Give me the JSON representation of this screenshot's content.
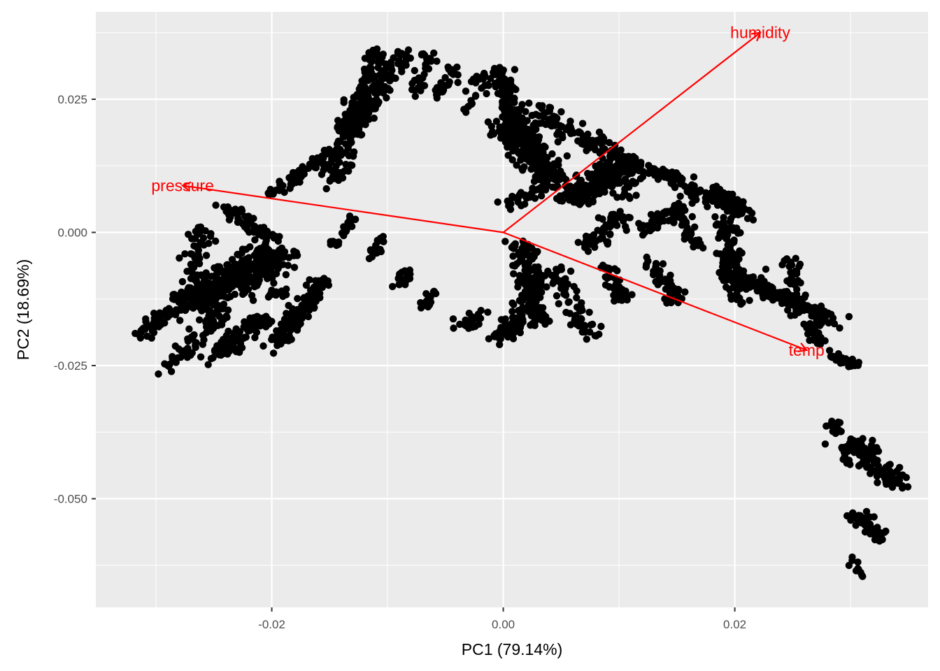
{
  "chart_data": {
    "type": "scatter",
    "title": "",
    "xlabel": "PC1 (79.14%)",
    "ylabel": "PC2 (18.69%)",
    "xlim": [
      -0.0352,
      0.0367
    ],
    "ylim": [
      -0.0704,
      0.0414
    ],
    "x_ticks": [
      -0.02,
      0.0,
      0.02
    ],
    "x_tick_labels": [
      "-0.02",
      "0.00",
      "0.02"
    ],
    "y_ticks": [
      -0.05,
      -0.025,
      0.0,
      0.025
    ],
    "y_tick_labels": [
      "-0.050",
      "-0.025",
      "0.000",
      "0.025"
    ],
    "grid": true,
    "background": "#ebebeb",
    "point_color": "#000000",
    "arrow_color": "#ff0000",
    "loadings": [
      {
        "label": "humidity",
        "x": 0.0222,
        "y": 0.0375
      },
      {
        "label": "pressure",
        "x": -0.0277,
        "y": 0.0088
      },
      {
        "label": "temp",
        "x": 0.0262,
        "y": -0.0221
      }
    ],
    "point_clusters": [
      {
        "x0": -0.0318,
        "y0": -0.0195,
        "x1": -0.0263,
        "y1": -0.0115,
        "n": 80,
        "spread": 0.0012
      },
      {
        "x0": -0.029,
        "y0": -0.025,
        "x1": -0.024,
        "y1": -0.015,
        "n": 70,
        "spread": 0.0012
      },
      {
        "x0": -0.027,
        "y0": -0.014,
        "x1": -0.026,
        "y1": 0.001,
        "n": 60,
        "spread": 0.001
      },
      {
        "x0": -0.0265,
        "y0": -0.013,
        "x1": -0.02,
        "y1": -0.004,
        "n": 380,
        "spread": 0.0021
      },
      {
        "x0": -0.025,
        "y0": -0.024,
        "x1": -0.021,
        "y1": -0.016,
        "n": 90,
        "spread": 0.0011
      },
      {
        "x0": -0.0245,
        "y0": 0.005,
        "x1": -0.02,
        "y1": -0.001,
        "n": 60,
        "spread": 0.001
      },
      {
        "x0": -0.0195,
        "y0": -0.021,
        "x1": -0.0155,
        "y1": -0.0085,
        "n": 130,
        "spread": 0.0009
      },
      {
        "x0": -0.0205,
        "y0": -0.012,
        "x1": -0.019,
        "y1": -0.011,
        "n": 15,
        "spread": 0.0006
      },
      {
        "x0": -0.02,
        "y0": 0.007,
        "x1": -0.015,
        "y1": 0.015,
        "n": 60,
        "spread": 0.0008
      },
      {
        "x0": -0.015,
        "y0": 0.008,
        "x1": -0.014,
        "y1": 0.02,
        "n": 30,
        "spread": 0.0008
      },
      {
        "x0": -0.0145,
        "y0": 0.01,
        "x1": -0.0125,
        "y1": 0.024,
        "n": 70,
        "spread": 0.0009
      },
      {
        "x0": -0.0145,
        "y0": -0.0025,
        "x1": -0.013,
        "y1": 0.0025,
        "n": 30,
        "spread": 0.0006
      },
      {
        "x0": -0.0115,
        "y0": -0.005,
        "x1": -0.0105,
        "y1": -0.0005,
        "n": 20,
        "spread": 0.0005
      },
      {
        "x0": -0.013,
        "y0": 0.018,
        "x1": -0.011,
        "y1": 0.034,
        "n": 130,
        "spread": 0.0009
      },
      {
        "x0": -0.0115,
        "y0": 0.023,
        "x1": -0.0085,
        "y1": 0.034,
        "n": 70,
        "spread": 0.0008
      },
      {
        "x0": -0.009,
        "y0": -0.01,
        "x1": -0.008,
        "y1": -0.007,
        "n": 25,
        "spread": 0.0006
      },
      {
        "x0": -0.007,
        "y0": -0.014,
        "x1": -0.006,
        "y1": -0.011,
        "n": 20,
        "spread": 0.0006
      },
      {
        "x0": -0.0075,
        "y0": 0.026,
        "x1": -0.0065,
        "y1": 0.034,
        "n": 30,
        "spread": 0.0007
      },
      {
        "x0": -0.0055,
        "y0": 0.025,
        "x1": -0.0045,
        "y1": 0.032,
        "n": 25,
        "spread": 0.0007
      },
      {
        "x0": -0.003,
        "y0": 0.023,
        "x1": -0.0015,
        "y1": 0.03,
        "n": 25,
        "spread": 0.0007
      },
      {
        "x0": -0.0035,
        "y0": -0.018,
        "x1": -0.0015,
        "y1": -0.014,
        "n": 25,
        "spread": 0.0007
      },
      {
        "x0": -0.0005,
        "y0": 0.031,
        "x1": 0.002,
        "y1": 0.017,
        "n": 130,
        "spread": 0.001
      },
      {
        "x0": 0.0005,
        "y0": 0.02,
        "x1": 0.004,
        "y1": 0.01,
        "n": 200,
        "spread": 0.0015
      },
      {
        "x0": 0.003,
        "y0": 0.023,
        "x1": 0.009,
        "y1": 0.015,
        "n": 100,
        "spread": 0.0015
      },
      {
        "x0": 0.0,
        "y0": 0.005,
        "x1": 0.005,
        "y1": 0.01,
        "n": 40,
        "spread": 0.001
      },
      {
        "x0": 0.0015,
        "y0": -0.002,
        "x1": 0.003,
        "y1": -0.017,
        "n": 150,
        "spread": 0.0011
      },
      {
        "x0": -0.0005,
        "y0": -0.02,
        "x1": 0.002,
        "y1": -0.015,
        "n": 60,
        "spread": 0.001
      },
      {
        "x0": 0.0045,
        "y0": -0.007,
        "x1": 0.0075,
        "y1": -0.02,
        "n": 70,
        "spread": 0.001
      },
      {
        "x0": 0.006,
        "y0": 0.006,
        "x1": 0.011,
        "y1": 0.014,
        "n": 250,
        "spread": 0.0014
      },
      {
        "x0": 0.007,
        "y0": -0.003,
        "x1": 0.01,
        "y1": 0.003,
        "n": 60,
        "spread": 0.0011
      },
      {
        "x0": 0.0085,
        "y0": -0.006,
        "x1": 0.0105,
        "y1": -0.013,
        "n": 40,
        "spread": 0.0008
      },
      {
        "x0": 0.0105,
        "y0": 0.006,
        "x1": 0.0115,
        "y1": 0.012,
        "n": 25,
        "spread": 0.0008
      },
      {
        "x0": 0.012,
        "y0": 0.0,
        "x1": 0.015,
        "y1": 0.005,
        "n": 50,
        "spread": 0.0009
      },
      {
        "x0": 0.013,
        "y0": 0.012,
        "x1": 0.018,
        "y1": 0.006,
        "n": 80,
        "spread": 0.001
      },
      {
        "x0": 0.0125,
        "y0": -0.005,
        "x1": 0.015,
        "y1": -0.013,
        "n": 50,
        "spread": 0.0009
      },
      {
        "x0": 0.0145,
        "y0": 0.005,
        "x1": 0.017,
        "y1": -0.003,
        "n": 40,
        "spread": 0.0008
      },
      {
        "x0": 0.018,
        "y0": 0.008,
        "x1": 0.021,
        "y1": 0.003,
        "n": 80,
        "spread": 0.001
      },
      {
        "x0": 0.019,
        "y0": 0.003,
        "x1": 0.0205,
        "y1": -0.013,
        "n": 120,
        "spread": 0.001
      },
      {
        "x0": 0.02,
        "y0": -0.008,
        "x1": 0.025,
        "y1": -0.013,
        "n": 120,
        "spread": 0.0011
      },
      {
        "x0": 0.0245,
        "y0": -0.004,
        "x1": 0.0255,
        "y1": -0.015,
        "n": 40,
        "spread": 0.0008
      },
      {
        "x0": 0.025,
        "y0": -0.013,
        "x1": 0.029,
        "y1": -0.017,
        "n": 70,
        "spread": 0.0009
      },
      {
        "x0": 0.0265,
        "y0": -0.017,
        "x1": 0.0275,
        "y1": -0.021,
        "n": 25,
        "spread": 0.0006
      },
      {
        "x0": 0.0285,
        "y0": -0.023,
        "x1": 0.0305,
        "y1": -0.025,
        "n": 35,
        "spread": 0.0007
      },
      {
        "x0": 0.0285,
        "y0": -0.035,
        "x1": 0.03,
        "y1": -0.045,
        "n": 30,
        "spread": 0.0008
      },
      {
        "x0": 0.0305,
        "y0": -0.039,
        "x1": 0.034,
        "y1": -0.048,
        "n": 110,
        "spread": 0.001
      },
      {
        "x0": 0.0305,
        "y0": -0.053,
        "x1": 0.033,
        "y1": -0.058,
        "n": 45,
        "spread": 0.001
      },
      {
        "x0": 0.03,
        "y0": -0.06,
        "x1": 0.031,
        "y1": -0.065,
        "n": 10,
        "spread": 0.0006
      }
    ]
  }
}
